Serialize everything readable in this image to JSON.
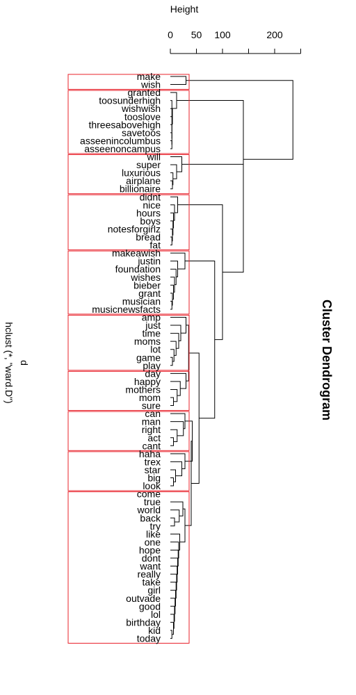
{
  "chart_data": {
    "type": "dendrogram",
    "title": "Cluster Dendrogram",
    "subtitle_line1": "d",
    "subtitle_line2": "hclust (*, \"ward.D\")",
    "axis_label": "Height",
    "axis_ticks": [
      "0",
      "50",
      "100",
      "200"
    ],
    "axis_tick_values": [
      0,
      50,
      100,
      200
    ],
    "axis_range": [
      0,
      250
    ],
    "leaf_order": [
      "make",
      "wish",
      "granted",
      "toosunderhigh",
      "wishwish",
      "tooslove",
      "threesabovehigh",
      "savetoos",
      "asseenincolumbus",
      "asseenoncampus",
      "will",
      "super",
      "luxurious",
      "airplane",
      "billionaire",
      "didnt",
      "nice",
      "hours",
      "boys",
      "notesforgirlz",
      "bread",
      "fat",
      "makeawish",
      "justin",
      "foundation",
      "wishes",
      "bieber",
      "grant",
      "musician",
      "musicnewsfacts",
      "amp",
      "just",
      "time",
      "moms",
      "lot",
      "game",
      "play",
      "day",
      "happy",
      "mothers",
      "mom",
      "sure",
      "can",
      "man",
      "right",
      "act",
      "cant",
      "haha",
      "trex",
      "star",
      "big",
      "look",
      "come",
      "true",
      "world",
      "back",
      "try",
      "like",
      "one",
      "hope",
      "dont",
      "want",
      "really",
      "take",
      "girl",
      "outvade",
      "good",
      "lol",
      "birthday",
      "kid",
      "today"
    ],
    "clusters": [
      {
        "name": "cluster-1",
        "leaves": [
          "make",
          "wish"
        ]
      },
      {
        "name": "cluster-2",
        "leaves": [
          "granted",
          "toosunderhigh",
          "wishwish",
          "tooslove",
          "threesabovehigh",
          "savetoos",
          "asseenincolumbus",
          "asseenoncampus"
        ]
      },
      {
        "name": "cluster-3",
        "leaves": [
          "will",
          "super",
          "luxurious",
          "airplane",
          "billionaire"
        ]
      },
      {
        "name": "cluster-4",
        "leaves": [
          "didnt",
          "nice",
          "hours",
          "boys",
          "notesforgirlz",
          "bread",
          "fat"
        ]
      },
      {
        "name": "cluster-5",
        "leaves": [
          "makeawish",
          "justin",
          "foundation",
          "wishes",
          "bieber",
          "grant",
          "musician",
          "musicnewsfacts"
        ]
      },
      {
        "name": "cluster-6",
        "leaves": [
          "amp",
          "just",
          "time",
          "moms",
          "lot",
          "game",
          "play"
        ]
      },
      {
        "name": "cluster-7",
        "leaves": [
          "day",
          "happy",
          "mothers",
          "mom",
          "sure"
        ]
      },
      {
        "name": "cluster-8",
        "leaves": [
          "can",
          "man",
          "right",
          "act",
          "cant"
        ]
      },
      {
        "name": "cluster-9",
        "leaves": [
          "haha",
          "trex",
          "star",
          "big",
          "look"
        ]
      },
      {
        "name": "cluster-10",
        "leaves": [
          "come",
          "true",
          "world",
          "back",
          "try",
          "like",
          "one",
          "hope",
          "dont",
          "want",
          "really",
          "take",
          "girl",
          "outvade",
          "good",
          "lol",
          "birthday",
          "kid",
          "today"
        ]
      }
    ],
    "merges": [
      {
        "h": 30,
        "a": "make",
        "b": "wish"
      },
      {
        "h": 3,
        "a": "asseenincolumbus",
        "b": "asseenoncampus"
      },
      {
        "h": 3,
        "a": "savetoos",
        "b": 1
      },
      {
        "h": 3,
        "a": "threesabovehigh",
        "b": 2
      },
      {
        "h": 3,
        "a": "tooslove",
        "b": 3
      },
      {
        "h": 4,
        "a": "wishwish",
        "b": 4
      },
      {
        "h": 3,
        "a": "toosunderhigh",
        "b": 5
      },
      {
        "h": 12,
        "a": "granted",
        "b": 6
      },
      {
        "h": 4,
        "a": "airplane",
        "b": "billionaire"
      },
      {
        "h": 5,
        "a": "luxurious",
        "b": 8
      },
      {
        "h": 12,
        "a": "super",
        "b": 9
      },
      {
        "h": 22,
        "a": "will",
        "b": 10
      },
      {
        "h": 3,
        "a": "bread",
        "b": "fat"
      },
      {
        "h": 4,
        "a": "notesforgirlz",
        "b": 12
      },
      {
        "h": 5,
        "a": "boys",
        "b": 13
      },
      {
        "h": 6,
        "a": "hours",
        "b": 14
      },
      {
        "h": 8,
        "a": "nice",
        "b": 15
      },
      {
        "h": 14,
        "a": "didnt",
        "b": 16
      },
      {
        "h": 3,
        "a": "musician",
        "b": "musicnewsfacts"
      },
      {
        "h": 4,
        "a": "grant",
        "b": 18
      },
      {
        "h": 6,
        "a": "bieber",
        "b": 19
      },
      {
        "h": 8,
        "a": "wishes",
        "b": 20
      },
      {
        "h": 11,
        "a": "foundation",
        "b": 21
      },
      {
        "h": 14,
        "a": "justin",
        "b": 22
      },
      {
        "h": 28,
        "a": "makeawish",
        "b": 23
      },
      {
        "h": 4,
        "a": "game",
        "b": "play"
      },
      {
        "h": 7,
        "a": "lot",
        "b": 25
      },
      {
        "h": 11,
        "a": "moms",
        "b": 26
      },
      {
        "h": 16,
        "a": "time",
        "b": 27
      },
      {
        "h": 20,
        "a": "just",
        "b": 28
      },
      {
        "h": 30,
        "a": "amp",
        "b": 29
      },
      {
        "h": 6,
        "a": "mom",
        "b": "sure"
      },
      {
        "h": 13,
        "a": "mothers",
        "b": 31
      },
      {
        "h": 19,
        "a": "happy",
        "b": 32
      },
      {
        "h": 30,
        "a": "day",
        "b": 33
      },
      {
        "h": 35,
        "a": 30,
        "b": 34
      },
      {
        "h": 6,
        "a": "act",
        "b": "cant"
      },
      {
        "h": 13,
        "a": "right",
        "b": 36
      },
      {
        "h": 25,
        "a": "man",
        "b": 37
      },
      {
        "h": 28,
        "a": "can",
        "b": 38
      },
      {
        "h": 6,
        "a": "big",
        "b": "look"
      },
      {
        "h": 10,
        "a": "star",
        "b": 40
      },
      {
        "h": 22,
        "a": "trex",
        "b": 41
      },
      {
        "h": 28,
        "a": "haha",
        "b": 42
      },
      {
        "h": 8,
        "a": "back",
        "b": "try"
      },
      {
        "h": 17,
        "a": "world",
        "b": 44
      },
      {
        "h": 24,
        "a": "true",
        "b": 45
      },
      {
        "h": 3,
        "a": "kid",
        "b": "today"
      },
      {
        "h": 6,
        "a": "birthday",
        "b": 47
      },
      {
        "h": 7,
        "a": "lol",
        "b": 48
      },
      {
        "h": 8,
        "a": "good",
        "b": 49
      },
      {
        "h": 9,
        "a": "outvade",
        "b": 50
      },
      {
        "h": 10,
        "a": "girl",
        "b": 51
      },
      {
        "h": 11,
        "a": "take",
        "b": 52
      },
      {
        "h": 12,
        "a": "really",
        "b": 53
      },
      {
        "h": 13,
        "a": "want",
        "b": 54
      },
      {
        "h": 14,
        "a": "dont",
        "b": 55
      },
      {
        "h": 15,
        "a": "hope",
        "b": 56
      },
      {
        "h": 16,
        "a": "one",
        "b": 57
      },
      {
        "h": 18,
        "a": "like",
        "b": 58
      },
      {
        "h": 28,
        "a": 46,
        "b": 59
      },
      {
        "h": 42,
        "a": 39,
        "b": 43
      },
      {
        "h": 40,
        "a": 60,
        "b": 61
      },
      {
        "h": 55,
        "a": 35,
        "b": 62
      },
      {
        "h": 85,
        "a": 24,
        "b": 63
      },
      {
        "h": 100,
        "a": 17,
        "b": 64
      },
      {
        "h": 140,
        "a": 11,
        "b": 65
      },
      {
        "h": 140,
        "a": 7,
        "b": 66
      },
      {
        "h": 235,
        "a": 0,
        "b": 67
      }
    ]
  }
}
